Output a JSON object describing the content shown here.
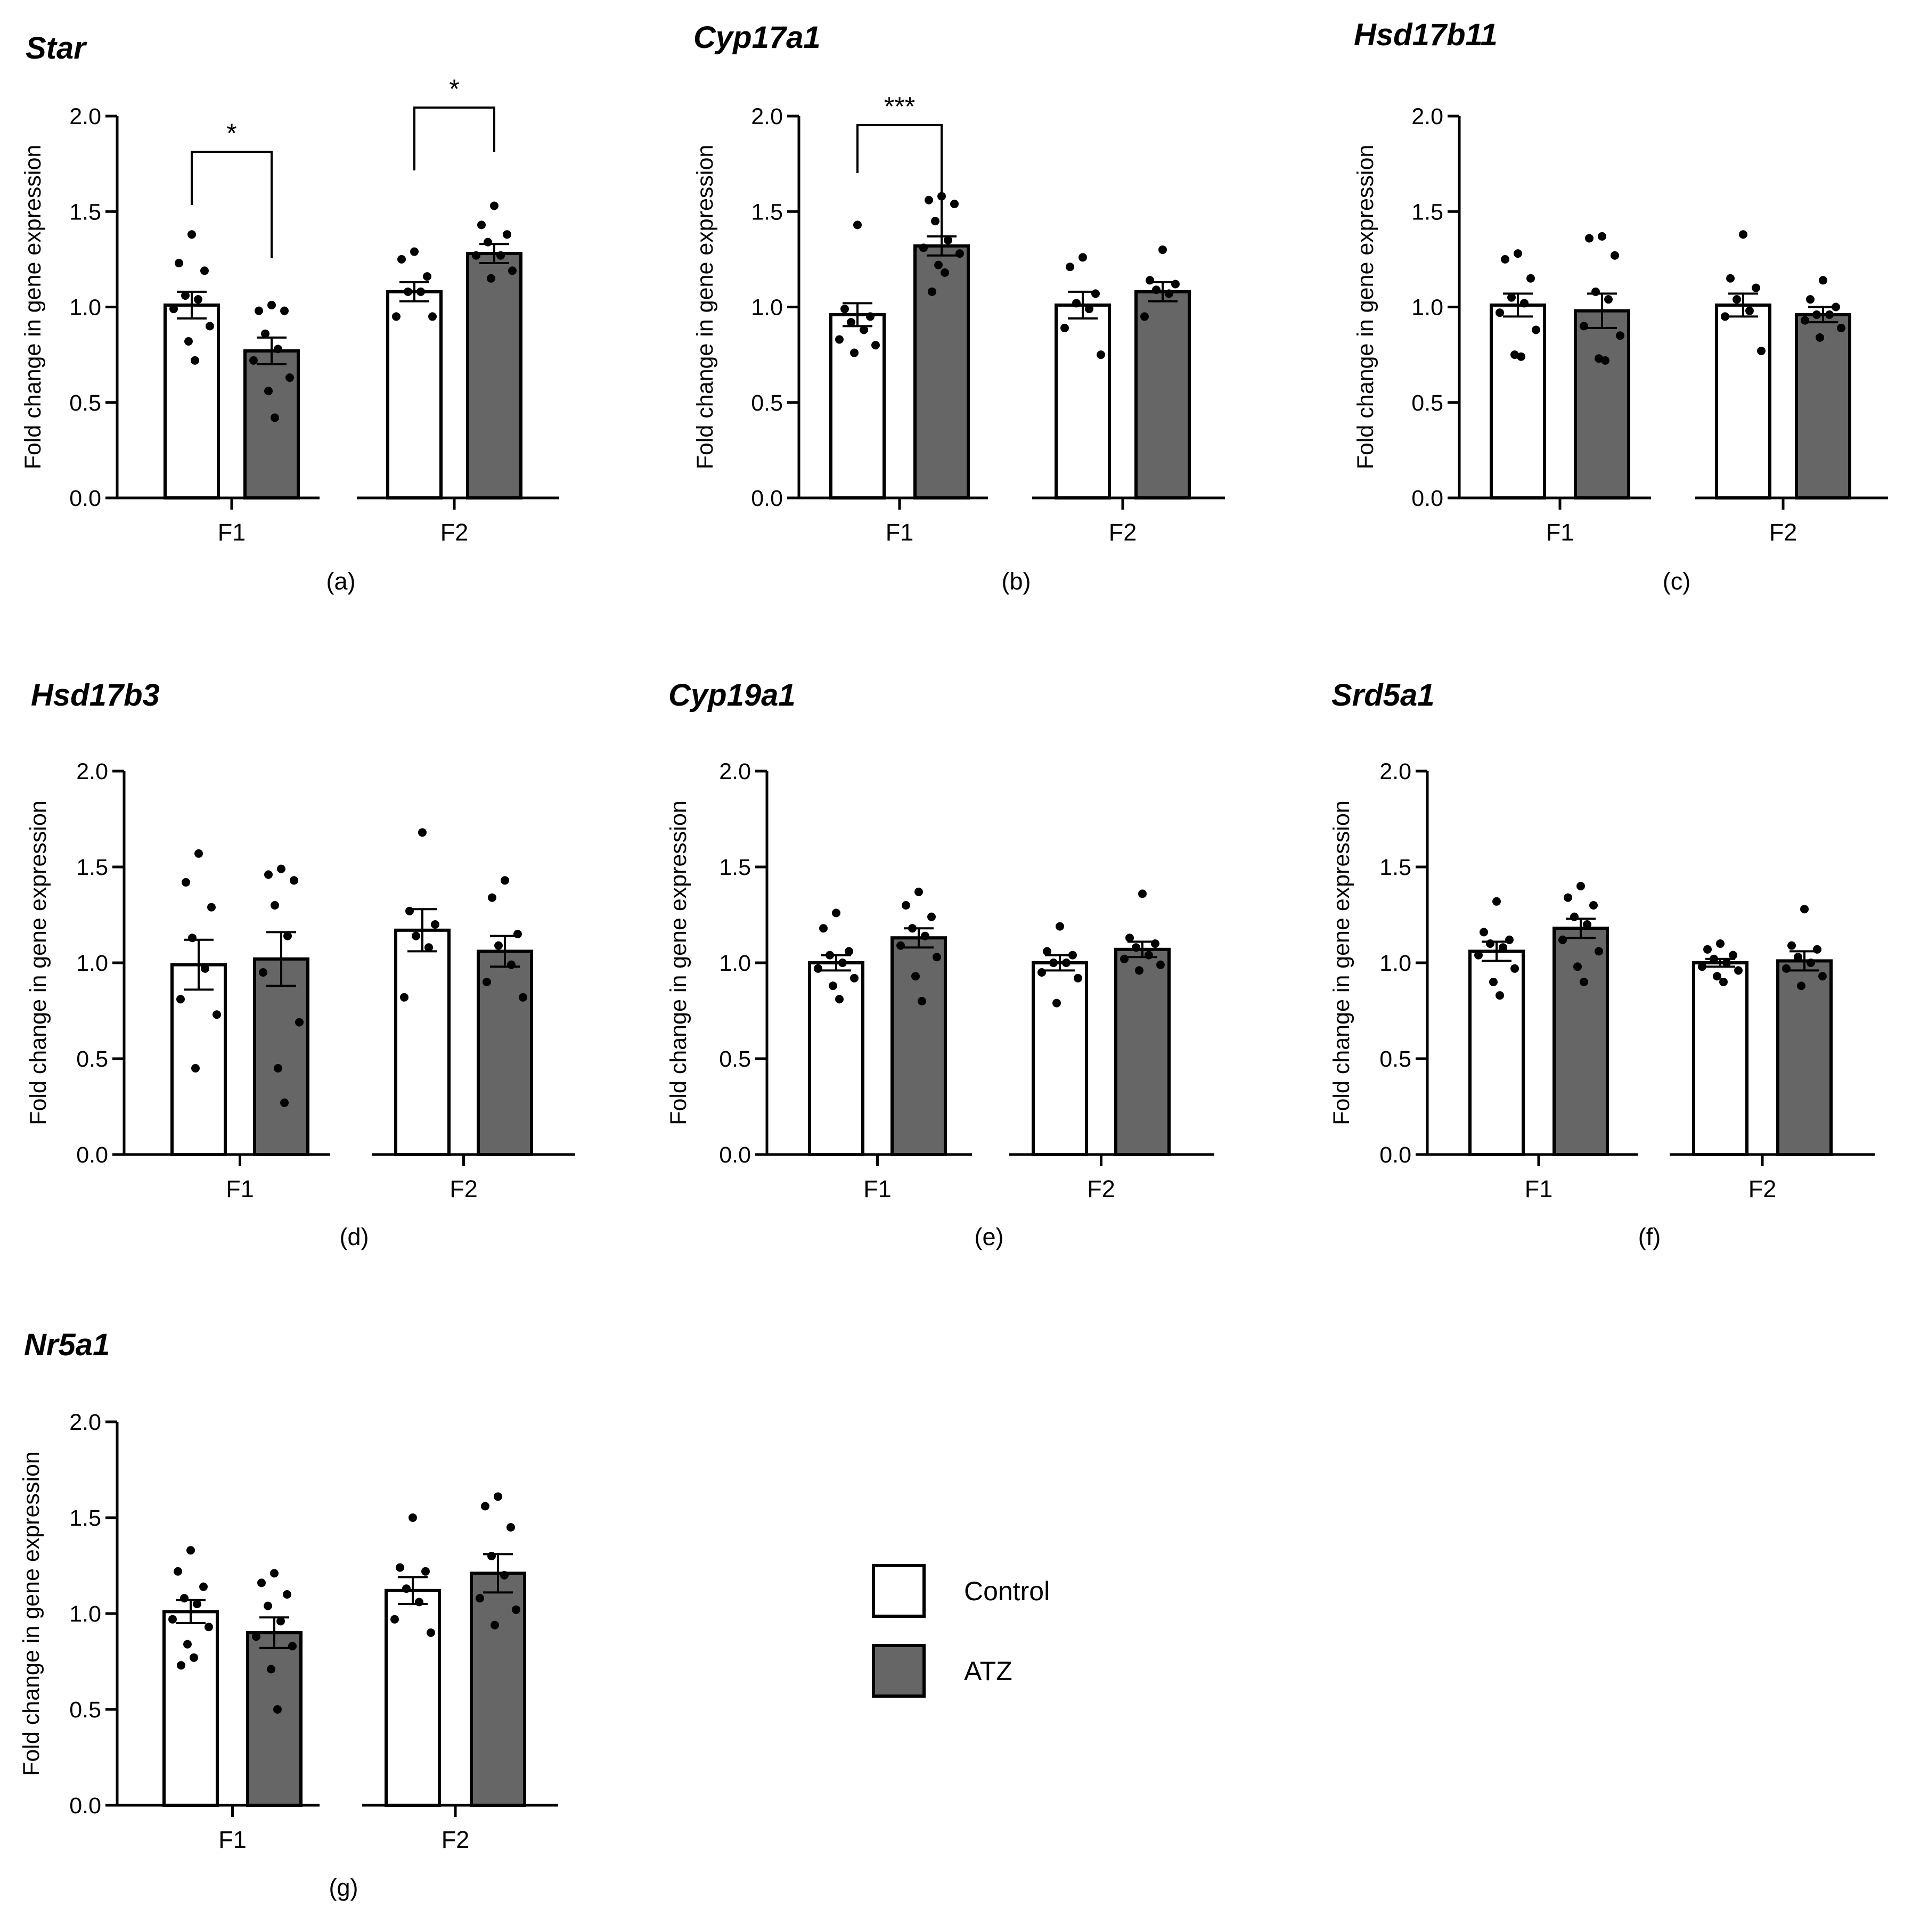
{
  "figure": {
    "legend": {
      "entries": [
        {
          "label": "Control",
          "color": "#ffffff"
        },
        {
          "label": "ATZ",
          "color": "#666666"
        }
      ],
      "placement": "bottom-center"
    }
  },
  "chart_data": [
    {
      "type": "bar",
      "title": "Star",
      "subfigure_label": "(a)",
      "ylabel": "Fold change in gene expression",
      "xlabel": "",
      "ylim": [
        0,
        2.0
      ],
      "yticks": [
        "0.0",
        "0.5",
        "1.0",
        "1.5",
        "2.0"
      ],
      "categories": [
        "F1",
        "F2"
      ],
      "series": [
        {
          "name": "Control",
          "color": "#ffffff",
          "values": [
            1.01,
            1.08
          ],
          "sem": [
            0.07,
            0.05
          ],
          "points": [
            [
              1.38,
              1.23,
              1.19,
              1.06,
              1.04,
              0.99,
              0.9,
              0.82,
              0.72
            ],
            [
              1.29,
              1.25,
              1.16,
              1.08,
              1.08,
              0.95,
              0.95
            ]
          ]
        },
        {
          "name": "ATZ",
          "color": "#666666",
          "values": [
            0.77,
            1.28
          ],
          "sem": [
            0.07,
            0.05
          ],
          "points": [
            [
              1.01,
              0.98,
              0.98,
              0.86,
              0.78,
              0.72,
              0.63,
              0.56,
              0.42
            ],
            [
              1.53,
              1.43,
              1.38,
              1.34,
              1.27,
              1.27,
              1.19,
              1.15
            ]
          ]
        }
      ],
      "annotations": [
        {
          "text": "*",
          "group": "F1"
        },
        {
          "text": "*",
          "group": "F2"
        }
      ]
    },
    {
      "type": "bar",
      "title": "Cyp17a1",
      "subfigure_label": "(b)",
      "ylabel": "Fold change in gene expression",
      "xlabel": "",
      "ylim": [
        0,
        2.0
      ],
      "yticks": [
        "0.0",
        "0.5",
        "1.0",
        "1.5",
        "2.0"
      ],
      "categories": [
        "F1",
        "F2"
      ],
      "series": [
        {
          "name": "Control",
          "color": "#ffffff",
          "values": [
            0.96,
            1.01
          ],
          "sem": [
            0.06,
            0.07
          ],
          "points": [
            [
              1.43,
              0.99,
              0.95,
              0.92,
              0.88,
              0.83,
              0.8,
              0.76
            ],
            [
              1.26,
              1.21,
              1.07,
              1.02,
              0.99,
              0.89,
              0.75
            ]
          ]
        },
        {
          "name": "ATZ",
          "color": "#666666",
          "values": [
            1.32,
            1.08
          ],
          "sem": [
            0.05,
            0.05
          ],
          "points": [
            [
              1.58,
              1.56,
              1.54,
              1.45,
              1.35,
              1.31,
              1.28,
              1.22,
              1.18,
              1.08
            ],
            [
              1.3,
              1.14,
              1.12,
              1.09,
              1.07,
              0.95
            ]
          ]
        }
      ],
      "annotations": [
        {
          "text": "***",
          "group": "F1"
        }
      ]
    },
    {
      "type": "bar",
      "title": "Hsd17b11",
      "subfigure_label": "(c)",
      "ylabel": "Fold change in gene expression",
      "xlabel": "",
      "ylim": [
        0,
        2.0
      ],
      "yticks": [
        "0.0",
        "0.5",
        "1.0",
        "1.5",
        "2.0"
      ],
      "categories": [
        "F1",
        "F2"
      ],
      "series": [
        {
          "name": "Control",
          "color": "#ffffff",
          "values": [
            1.01,
            1.01
          ],
          "sem": [
            0.06,
            0.06
          ],
          "points": [
            [
              1.28,
              1.25,
              1.15,
              1.05,
              1.02,
              0.97,
              0.88,
              0.75,
              0.74
            ],
            [
              1.38,
              1.15,
              1.1,
              1.04,
              0.98,
              0.95,
              0.77
            ]
          ]
        },
        {
          "name": "ATZ",
          "color": "#666666",
          "values": [
            0.98,
            0.96
          ],
          "sem": [
            0.09,
            0.04
          ],
          "points": [
            [
              1.37,
              1.36,
              1.27,
              1.08,
              1.04,
              0.9,
              0.85,
              0.73,
              0.72
            ],
            [
              1.14,
              1.04,
              1.0,
              0.96,
              0.96,
              0.93,
              0.89,
              0.84
            ]
          ]
        }
      ],
      "annotations": []
    },
    {
      "type": "bar",
      "title": "Hsd17b3",
      "subfigure_label": "(d)",
      "ylabel": "Fold change in gene expression",
      "xlabel": "",
      "ylim": [
        0,
        2.0
      ],
      "yticks": [
        "0.0",
        "0.5",
        "1.0",
        "1.5",
        "2.0"
      ],
      "categories": [
        "F1",
        "F2"
      ],
      "series": [
        {
          "name": "Control",
          "color": "#ffffff",
          "values": [
            0.99,
            1.17
          ],
          "sem": [
            0.13,
            0.11
          ],
          "points": [
            [
              1.57,
              1.42,
              1.29,
              1.13,
              0.97,
              0.81,
              0.73,
              0.45
            ],
            [
              1.68,
              1.27,
              1.2,
              1.14,
              1.08,
              0.82
            ]
          ]
        },
        {
          "name": "ATZ",
          "color": "#666666",
          "values": [
            1.02,
            1.06
          ],
          "sem": [
            0.14,
            0.08
          ],
          "points": [
            [
              1.49,
              1.46,
              1.43,
              1.3,
              1.14,
              0.95,
              0.69,
              0.45,
              0.27
            ],
            [
              1.43,
              1.34,
              1.15,
              1.09,
              0.99,
              0.9,
              0.82
            ]
          ]
        }
      ],
      "annotations": []
    },
    {
      "type": "bar",
      "title": "Cyp19a1",
      "subfigure_label": "(e)",
      "ylabel": "Fold change in gene expression",
      "xlabel": "",
      "ylim": [
        0,
        2.0
      ],
      "yticks": [
        "0.0",
        "0.5",
        "1.0",
        "1.5",
        "2.0"
      ],
      "categories": [
        "F1",
        "F2"
      ],
      "series": [
        {
          "name": "Control",
          "color": "#ffffff",
          "values": [
            1.0,
            1.0
          ],
          "sem": [
            0.04,
            0.04
          ],
          "points": [
            [
              1.26,
              1.18,
              1.06,
              1.04,
              1.0,
              0.97,
              0.92,
              0.88,
              0.81
            ],
            [
              1.19,
              1.06,
              1.04,
              1.0,
              1.0,
              0.95,
              0.92,
              0.79
            ]
          ]
        },
        {
          "name": "ATZ",
          "color": "#666666",
          "values": [
            1.13,
            1.07
          ],
          "sem": [
            0.05,
            0.04
          ],
          "points": [
            [
              1.37,
              1.3,
              1.24,
              1.18,
              1.14,
              1.09,
              1.03,
              0.93,
              0.8
            ],
            [
              1.36,
              1.13,
              1.1,
              1.08,
              1.04,
              1.02,
              0.99,
              0.96
            ]
          ]
        }
      ],
      "annotations": []
    },
    {
      "type": "bar",
      "title": "Srd5a1",
      "subfigure_label": "(f)",
      "ylabel": "Fold change in gene expression",
      "xlabel": "",
      "ylim": [
        0,
        2.0
      ],
      "yticks": [
        "0.0",
        "0.5",
        "1.0",
        "1.5",
        "2.0"
      ],
      "categories": [
        "F1",
        "F2"
      ],
      "series": [
        {
          "name": "Control",
          "color": "#ffffff",
          "values": [
            1.06,
            1.0
          ],
          "sem": [
            0.05,
            0.02
          ],
          "points": [
            [
              1.32,
              1.16,
              1.12,
              1.1,
              1.08,
              1.04,
              0.97,
              0.9,
              0.83
            ],
            [
              1.1,
              1.07,
              1.04,
              1.02,
              1.0,
              0.98,
              0.96,
              0.93,
              0.9
            ]
          ]
        },
        {
          "name": "ATZ",
          "color": "#666666",
          "values": [
            1.18,
            1.01
          ],
          "sem": [
            0.05,
            0.05
          ],
          "points": [
            [
              1.4,
              1.34,
              1.3,
              1.24,
              1.2,
              1.12,
              1.06,
              0.98,
              0.9
            ],
            [
              1.28,
              1.09,
              1.07,
              1.03,
              1.0,
              0.97,
              0.93,
              0.88
            ]
          ]
        }
      ],
      "annotations": []
    },
    {
      "type": "bar",
      "title": "Nr5a1",
      "subfigure_label": "(g)",
      "ylabel": "Fold change in gene expression",
      "xlabel": "",
      "ylim": [
        0,
        2.0
      ],
      "yticks": [
        "0.0",
        "0.5",
        "1.0",
        "1.5",
        "2.0"
      ],
      "categories": [
        "F1",
        "F2"
      ],
      "series": [
        {
          "name": "Control",
          "color": "#ffffff",
          "values": [
            1.01,
            1.12
          ],
          "sem": [
            0.06,
            0.07
          ],
          "points": [
            [
              1.33,
              1.22,
              1.14,
              1.08,
              1.05,
              0.97,
              0.93,
              0.84,
              0.77,
              0.73
            ],
            [
              1.5,
              1.24,
              1.22,
              1.13,
              1.06,
              0.97,
              0.9
            ]
          ]
        },
        {
          "name": "ATZ",
          "color": "#666666",
          "values": [
            0.9,
            1.21
          ],
          "sem": [
            0.08,
            0.1
          ],
          "points": [
            [
              1.21,
              1.16,
              1.1,
              1.04,
              0.96,
              0.88,
              0.83,
              0.71,
              0.5
            ],
            [
              1.61,
              1.56,
              1.45,
              1.3,
              1.2,
              1.08,
              1.02,
              0.94
            ]
          ]
        }
      ],
      "annotations": []
    }
  ]
}
